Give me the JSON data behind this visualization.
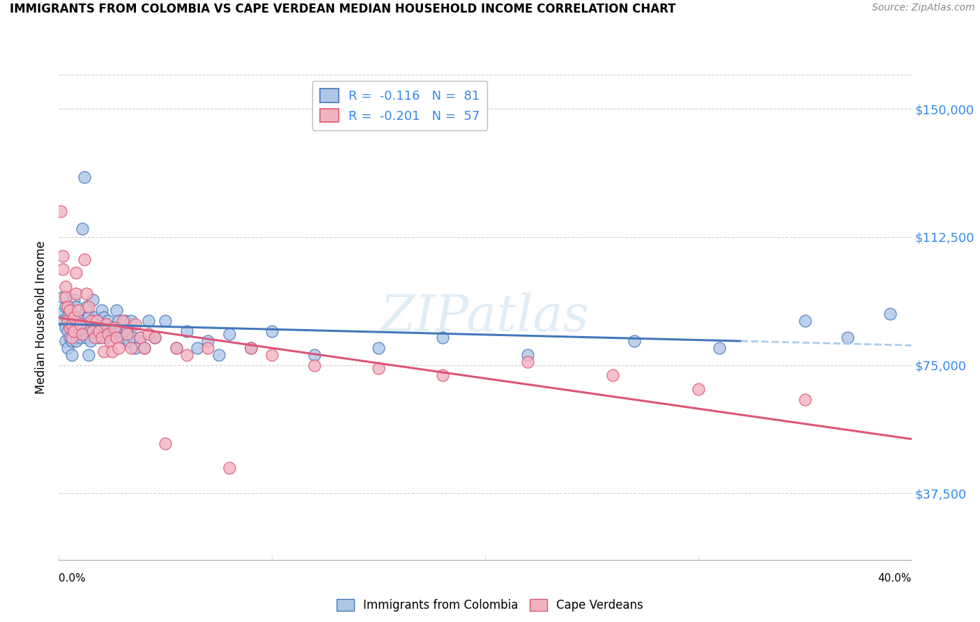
{
  "title": "IMMIGRANTS FROM COLOMBIA VS CAPE VERDEAN MEDIAN HOUSEHOLD INCOME CORRELATION CHART",
  "source": "Source: ZipAtlas.com",
  "ylabel": "Median Household Income",
  "yticks": [
    37500,
    75000,
    112500,
    150000
  ],
  "ytick_labels": [
    "$37,500",
    "$75,000",
    "$112,500",
    "$150,000"
  ],
  "xmin": 0.0,
  "xmax": 0.4,
  "ymin": 18000,
  "ymax": 160000,
  "colombia_R": "-0.116",
  "colombia_N": "81",
  "capeverde_R": "-0.201",
  "capeverde_N": "57",
  "colombia_color": "#aec6e8",
  "capeverde_color": "#f2b3c0",
  "colombia_line_color": "#4477bb",
  "capeverde_line_color": "#dd5577",
  "watermark": "ZIPatlas",
  "colombia_x": [
    0.001,
    0.002,
    0.002,
    0.003,
    0.003,
    0.003,
    0.004,
    0.004,
    0.004,
    0.005,
    0.005,
    0.005,
    0.006,
    0.006,
    0.006,
    0.006,
    0.007,
    0.007,
    0.007,
    0.008,
    0.008,
    0.008,
    0.009,
    0.009,
    0.01,
    0.01,
    0.011,
    0.011,
    0.012,
    0.012,
    0.013,
    0.013,
    0.014,
    0.014,
    0.015,
    0.015,
    0.016,
    0.016,
    0.017,
    0.018,
    0.019,
    0.02,
    0.02,
    0.021,
    0.022,
    0.023,
    0.024,
    0.025,
    0.026,
    0.027,
    0.028,
    0.029,
    0.03,
    0.031,
    0.032,
    0.033,
    0.034,
    0.035,
    0.036,
    0.038,
    0.04,
    0.042,
    0.045,
    0.05,
    0.055,
    0.06,
    0.065,
    0.07,
    0.075,
    0.08,
    0.09,
    0.1,
    0.12,
    0.15,
    0.18,
    0.22,
    0.27,
    0.31,
    0.35,
    0.37,
    0.39
  ],
  "colombia_y": [
    90000,
    88000,
    95000,
    92000,
    86000,
    82000,
    89000,
    85000,
    80000,
    91000,
    87000,
    83000,
    90000,
    86000,
    82000,
    78000,
    94000,
    88000,
    85000,
    92000,
    86000,
    82000,
    89000,
    84000,
    88000,
    83000,
    115000,
    87000,
    130000,
    85000,
    92000,
    83000,
    89000,
    78000,
    86000,
    82000,
    94000,
    88000,
    89000,
    86000,
    83000,
    91000,
    87000,
    89000,
    83000,
    88000,
    85000,
    86000,
    84000,
    91000,
    88000,
    85000,
    83000,
    88000,
    85000,
    82000,
    88000,
    83000,
    80000,
    83000,
    80000,
    88000,
    83000,
    88000,
    80000,
    85000,
    80000,
    82000,
    78000,
    84000,
    80000,
    85000,
    78000,
    80000,
    83000,
    78000,
    82000,
    80000,
    88000,
    83000,
    90000
  ],
  "capeverde_x": [
    0.001,
    0.002,
    0.002,
    0.003,
    0.003,
    0.004,
    0.004,
    0.005,
    0.005,
    0.006,
    0.006,
    0.007,
    0.007,
    0.008,
    0.008,
    0.009,
    0.01,
    0.011,
    0.012,
    0.013,
    0.014,
    0.015,
    0.016,
    0.017,
    0.018,
    0.019,
    0.02,
    0.021,
    0.022,
    0.023,
    0.024,
    0.025,
    0.026,
    0.027,
    0.028,
    0.03,
    0.032,
    0.034,
    0.036,
    0.038,
    0.04,
    0.042,
    0.045,
    0.05,
    0.055,
    0.06,
    0.07,
    0.08,
    0.09,
    0.1,
    0.12,
    0.15,
    0.18,
    0.22,
    0.26,
    0.3,
    0.35
  ],
  "capeverde_y": [
    120000,
    107000,
    103000,
    98000,
    95000,
    92000,
    88000,
    91000,
    86000,
    87000,
    83000,
    89000,
    85000,
    102000,
    96000,
    91000,
    87000,
    84000,
    106000,
    96000,
    92000,
    88000,
    85000,
    83000,
    88000,
    85000,
    83000,
    79000,
    87000,
    84000,
    82000,
    79000,
    86000,
    83000,
    80000,
    88000,
    84000,
    80000,
    87000,
    83000,
    80000,
    84000,
    83000,
    52000,
    80000,
    78000,
    80000,
    45000,
    80000,
    78000,
    75000,
    74000,
    72000,
    76000,
    72000,
    68000,
    65000
  ]
}
